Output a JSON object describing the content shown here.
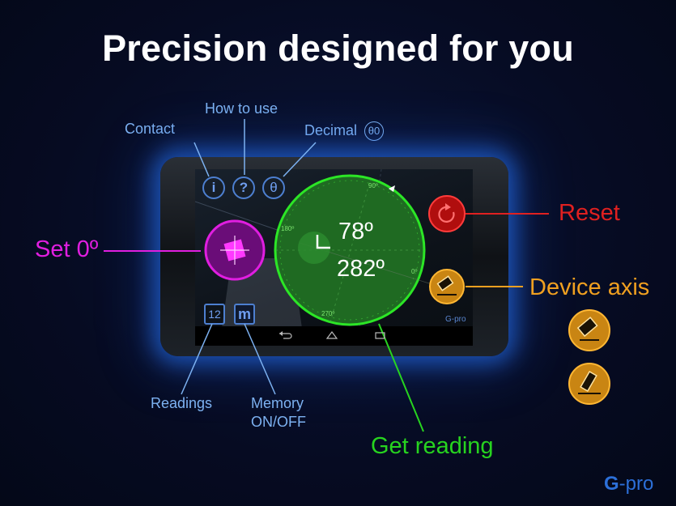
{
  "headline": "Precision designed for you",
  "labels": {
    "how_to_use": "How to use",
    "contact": "Contact",
    "decimal": "Decimal",
    "decimal_badge": "θ0",
    "set_zero": "Set 0º",
    "reset": "Reset",
    "device_axis": "Device axis",
    "readings": "Readings",
    "memory_line1": "Memory",
    "memory_line2": "ON/OFF",
    "get_reading": "Get reading"
  },
  "app": {
    "btn_info": "i",
    "btn_help": "?",
    "btn_decimal": "θ",
    "readings_count": "12",
    "memory_button": "m",
    "reading_primary": "78º",
    "reading_secondary": "282º",
    "dial_ticks": [
      "90º",
      "180º",
      "0º",
      "270º"
    ],
    "watermark": "G-pro",
    "nav_icons": [
      "back-icon",
      "home-icon",
      "recent-apps-icon"
    ]
  },
  "logo": {
    "accent": "G",
    "rest": "-pro"
  },
  "colors": {
    "set_zero": "#e01ee0",
    "reset": "#e02020",
    "device_axis": "#f0a020",
    "get_reading": "#27d41f",
    "annotation_blue": "#7db2f2",
    "logo": "#2c6fd8"
  }
}
